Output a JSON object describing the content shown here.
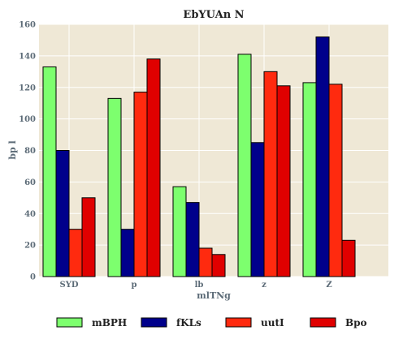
{
  "chart_data": {
    "type": "bar",
    "title": "EbYUAn N",
    "xlabel": "mlTNg",
    "ylabel": "bp l",
    "categories": [
      "SYD",
      "p",
      "lb",
      "z",
      "Z"
    ],
    "ylim": [
      0,
      160
    ],
    "yticks": [
      0,
      20,
      40,
      60,
      80,
      100,
      120,
      140,
      160
    ],
    "grid": true,
    "legend_position": "bottom",
    "background": "#efe8d6",
    "series": [
      {
        "name": "mBPH",
        "color": "#7dff6e",
        "values": [
          133,
          113,
          57,
          141,
          123
        ]
      },
      {
        "name": "fKLs",
        "color": "#00008b",
        "values": [
          80,
          30,
          47,
          85,
          152
        ]
      },
      {
        "name": "uutI",
        "color": "#ff2a0f",
        "values": [
          30,
          117,
          18,
          130,
          122
        ]
      },
      {
        "name": "Bpo",
        "color": "#e00000",
        "values": [
          50,
          138,
          14,
          121,
          23
        ]
      }
    ]
  }
}
